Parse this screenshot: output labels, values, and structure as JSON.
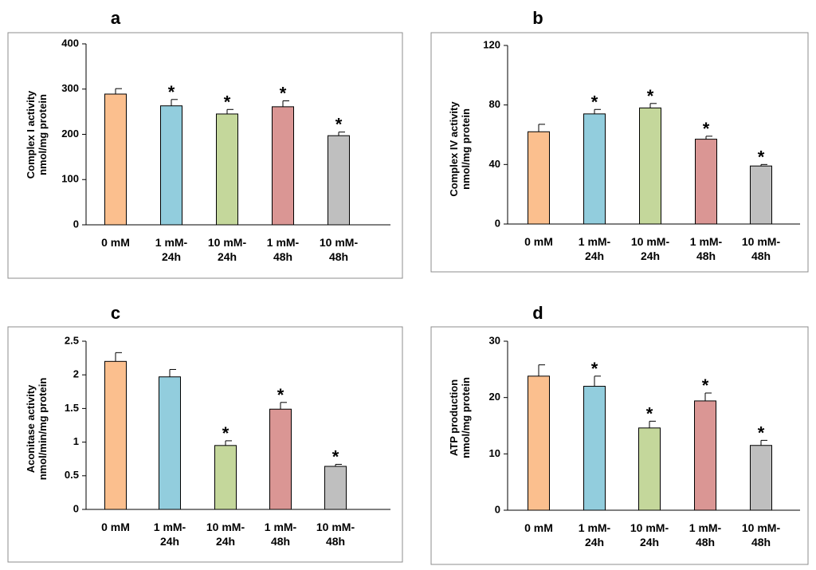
{
  "colors": [
    "#FBBF8E",
    "#92CDDD",
    "#C4D79B",
    "#DA9694",
    "#BFBFBF"
  ],
  "chart_data": [
    {
      "type": "bar",
      "panel_label": "a",
      "ylabel": [
        "Complex I activity",
        "nmol/mg protein"
      ],
      "categories": [
        [
          "0 mM"
        ],
        [
          "1 mM-",
          "24h"
        ],
        [
          "10 mM-",
          "24h"
        ],
        [
          "1 mM-",
          "48h"
        ],
        [
          "10 mM-",
          "48h"
        ]
      ],
      "values": [
        289,
        263,
        245,
        261,
        197
      ],
      "errors": [
        12,
        14,
        10,
        13,
        8
      ],
      "significant": [
        false,
        true,
        true,
        true,
        true
      ],
      "sig_marker": "*",
      "ylim": [
        0,
        400
      ],
      "yticks": [
        0,
        100,
        200,
        300,
        400
      ],
      "ytick_labels": [
        "0",
        "100",
        "200",
        "300",
        "400"
      ]
    },
    {
      "type": "bar",
      "panel_label": "b",
      "ylabel": [
        "Complex IV activity",
        "nmol/mg protein"
      ],
      "categories": [
        [
          "0 mM"
        ],
        [
          "1 mM-",
          "24h"
        ],
        [
          "10 mM-",
          "24h"
        ],
        [
          "1 mM-",
          "48h"
        ],
        [
          "10 mM-",
          "48h"
        ]
      ],
      "values": [
        62,
        74,
        78,
        57,
        39
      ],
      "errors": [
        5,
        3,
        3,
        2,
        1
      ],
      "significant": [
        false,
        true,
        true,
        true,
        true
      ],
      "sig_marker": "*",
      "ylim": [
        0,
        120
      ],
      "yticks": [
        0,
        40,
        80,
        120
      ],
      "ytick_labels": [
        "0",
        "40",
        "80",
        "120"
      ]
    },
    {
      "type": "bar",
      "panel_label": "c",
      "ylabel": [
        "Aconitase activity",
        "nmol/min/mg protein"
      ],
      "categories": [
        [
          "0 mM"
        ],
        [
          "1 mM-",
          "24h"
        ],
        [
          "10 mM-",
          "24h"
        ],
        [
          "1 mM-",
          "48h"
        ],
        [
          "10 mM-",
          "48h"
        ]
      ],
      "values": [
        2.2,
        1.97,
        0.95,
        1.49,
        0.64
      ],
      "errors": [
        0.13,
        0.11,
        0.07,
        0.1,
        0.03
      ],
      "significant": [
        false,
        false,
        true,
        true,
        true
      ],
      "sig_marker": "*",
      "ylim": [
        0,
        2.5
      ],
      "yticks": [
        0,
        0.5,
        1,
        1.5,
        2,
        2.5
      ],
      "ytick_labels": [
        "0",
        "0.5",
        "1",
        "1.5",
        "2",
        "2.5"
      ]
    },
    {
      "type": "bar",
      "panel_label": "d",
      "ylabel": [
        "ATP production",
        "nmol/mg protein"
      ],
      "categories": [
        [
          "0 mM"
        ],
        [
          "1 mM-",
          "24h"
        ],
        [
          "10 mM-",
          "24h"
        ],
        [
          "1 mM-",
          "48h"
        ],
        [
          "10 mM-",
          "48h"
        ]
      ],
      "values": [
        23.8,
        22,
        14.6,
        19.4,
        11.5
      ],
      "errors": [
        2,
        1.8,
        1.2,
        1.4,
        0.9
      ],
      "significant": [
        false,
        true,
        true,
        true,
        true
      ],
      "sig_marker": "*",
      "ylim": [
        0,
        30
      ],
      "yticks": [
        0,
        10,
        20,
        30
      ],
      "ytick_labels": [
        "0",
        "10",
        "20",
        "30"
      ]
    }
  ]
}
